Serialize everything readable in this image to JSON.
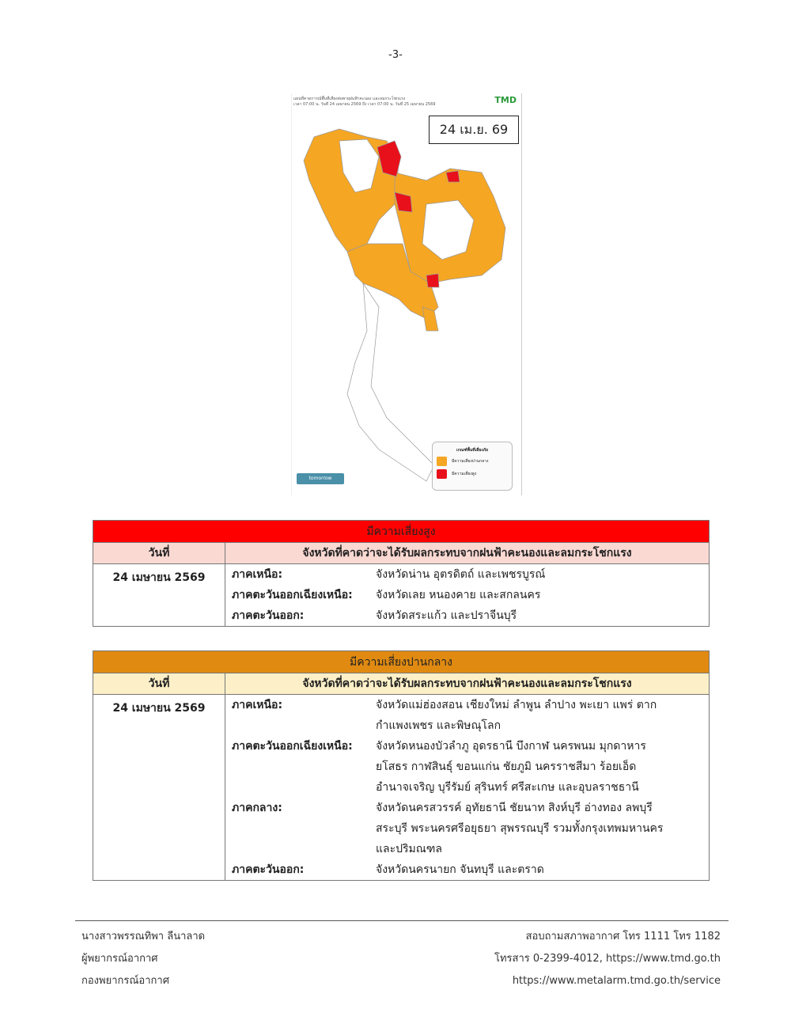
{
  "page_number": "-3-",
  "map": {
    "title_line1": "แผนที่คาดการณ์พื้นที่เสี่ยงต่อพายุฝนฟ้าคะนอง และลมกระโชกแรง",
    "title_line2": "เวลา 07:00 น. วันที่ 24 เมษายน 2569 ถึง เวลา 07:00 น. วันที่ 25 เมษายน 2569",
    "logo_text": "TMD",
    "date_label": "24 เม.ย. 69",
    "legend_title": "เกณฑ์พื้นที่เสี่ยงภัย",
    "legend_items": [
      {
        "label": "มีความเสี่ยงปานกลาง",
        "color": "#f5a623"
      },
      {
        "label": "มีความเสี่ยงสูง",
        "color": "#e8101a"
      }
    ],
    "source_badge": "tomorrow"
  },
  "high_risk": {
    "title": "มีความเสี่ยงสูง",
    "header_color": "#ff0000",
    "subheader_color": "#fbd9d3",
    "col_date": "วันที่",
    "col_provinces": "จังหวัดที่คาดว่าจะได้รับผลกระทบจากฝนฟ้าคะนองและลมกระโชกแรง",
    "date": "24 เมษายน 2569",
    "regions": [
      {
        "label": "ภาคเหนือ:",
        "lines": [
          "จังหวัดน่าน อุตรดิตถ์ และเพชรบูรณ์"
        ]
      },
      {
        "label": "ภาคตะวันออกเฉียงเหนือ:",
        "lines": [
          "จังหวัดเลย หนองคาย และสกลนคร"
        ]
      },
      {
        "label": "ภาคตะวันออก:",
        "lines": [
          "จังหวัดสระแก้ว และปราจีนบุรี"
        ]
      }
    ]
  },
  "medium_risk": {
    "title": "มีความเสี่ยงปานกลาง",
    "header_color": "#e08a12",
    "subheader_color": "#fdf0c8",
    "col_date": "วันที่",
    "col_provinces": "จังหวัดที่คาดว่าจะได้รับผลกระทบจากฝนฟ้าคะนองและลมกระโชกแรง",
    "date": "24 เมษายน 2569",
    "regions": [
      {
        "label": "ภาคเหนือ:",
        "lines": [
          "จังหวัดแม่ฮ่องสอน เชียงใหม่ ลำพูน ลำปาง พะเยา แพร่ ตาก",
          "กำแพงเพชร และพิษณุโลก"
        ]
      },
      {
        "label": "ภาคตะวันออกเฉียงเหนือ:",
        "lines": [
          "จังหวัดหนองบัวลำภู อุดรธานี บึงกาฬ นครพนม มุกดาหาร",
          "ยโสธร กาฬสินธุ์ ขอนแก่น ชัยภูมิ นครราชสีมา ร้อยเอ็ด",
          "อำนาจเจริญ บุรีรัมย์ สุรินทร์ ศรีสะเกษ และอุบลราชธานี"
        ]
      },
      {
        "label": "ภาคกลาง:",
        "lines": [
          "จังหวัดนครสวรรค์ อุทัยธานี ชัยนาท สิงห์บุรี อ่างทอง ลพบุรี",
          "สระบุรี พระนครศรีอยุธยา สุพรรณบุรี รวมทั้งกรุงเทพมหานคร",
          "และปริมณฑล"
        ]
      },
      {
        "label": "ภาคตะวันออก:",
        "lines": [
          "จังหวัดนครนายก จันทบุรี และตราด"
        ]
      }
    ]
  },
  "footer": {
    "left": [
      "นางสาวพรรณทิพา ลีนาลาด",
      "ผู้พยากรณ์อากาศ",
      "กองพยากรณ์อากาศ"
    ],
    "right": [
      "สอบถามสภาพอากาศ โทร 1111 โทร 1182",
      "โทรสาร 0-2399-4012, https://www.tmd.go.th",
      "https://www.metalarm.tmd.go.th/service"
    ]
  }
}
